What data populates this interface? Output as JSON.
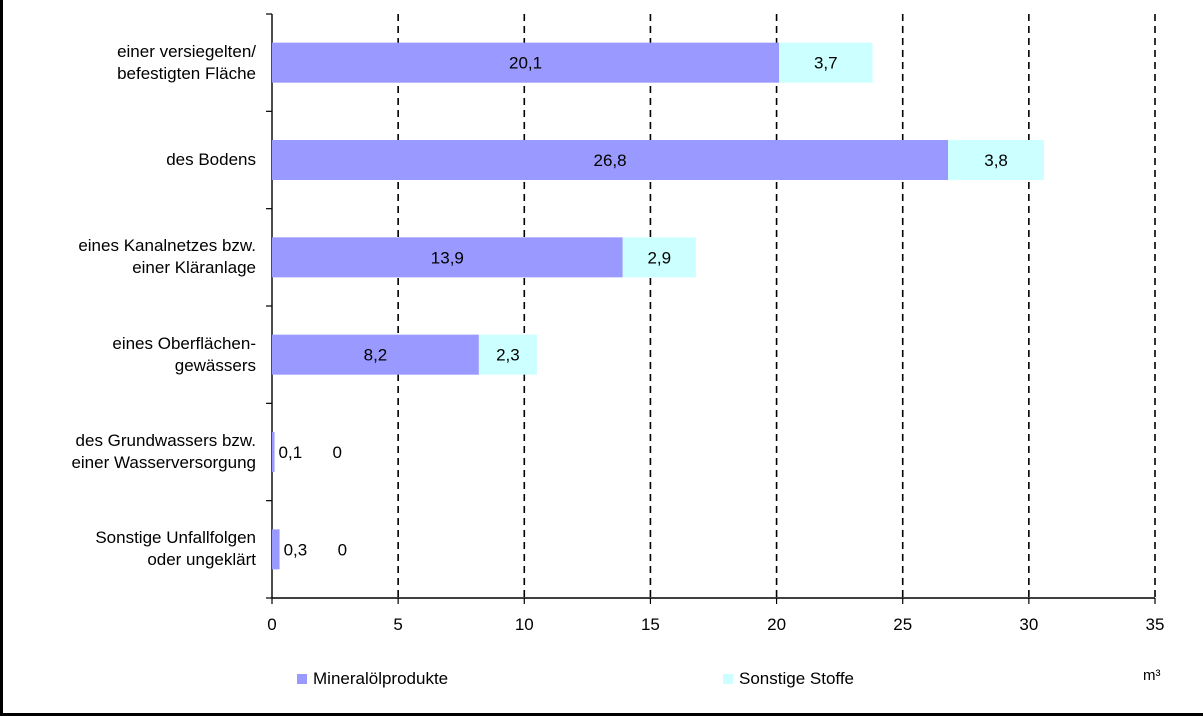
{
  "chart_data": {
    "type": "bar",
    "orientation": "horizontal",
    "stacked": true,
    "categories": [
      "einer versiegelten/\nbefestigten Fläche",
      "des Bodens",
      "eines Kanalnetzes bzw.\neiner Kläranlage",
      "eines Oberflächen-\ngewässers",
      "des Grundwassers bzw.\neiner Wasserversorgung",
      "Sonstige Unfallfolgen\noder ungeklärt"
    ],
    "series": [
      {
        "name": "Mineralölprodukte",
        "values": [
          20.1,
          26.8,
          13.9,
          8.2,
          0.1,
          0.3
        ],
        "labels": [
          "20,1",
          "26,8",
          "13,9",
          "8,2",
          "0,1",
          "0,3"
        ],
        "color": "#9999ff"
      },
      {
        "name": "Sonstige Stoffe",
        "values": [
          3.7,
          3.8,
          2.9,
          2.3,
          0,
          0
        ],
        "labels": [
          "3,7",
          "3,8",
          "2,9",
          "2,3",
          "0",
          "0"
        ],
        "color": "#ccffff"
      }
    ],
    "xlim": [
      0,
      35
    ],
    "xticks": [
      0,
      5,
      10,
      15,
      20,
      25,
      30,
      35
    ],
    "xtick_labels": [
      "0",
      "5",
      "10",
      "15",
      "20",
      "25",
      "30",
      "35"
    ],
    "xlabel": "m³",
    "grid": "vertical dashed",
    "legend_position": "bottom"
  }
}
